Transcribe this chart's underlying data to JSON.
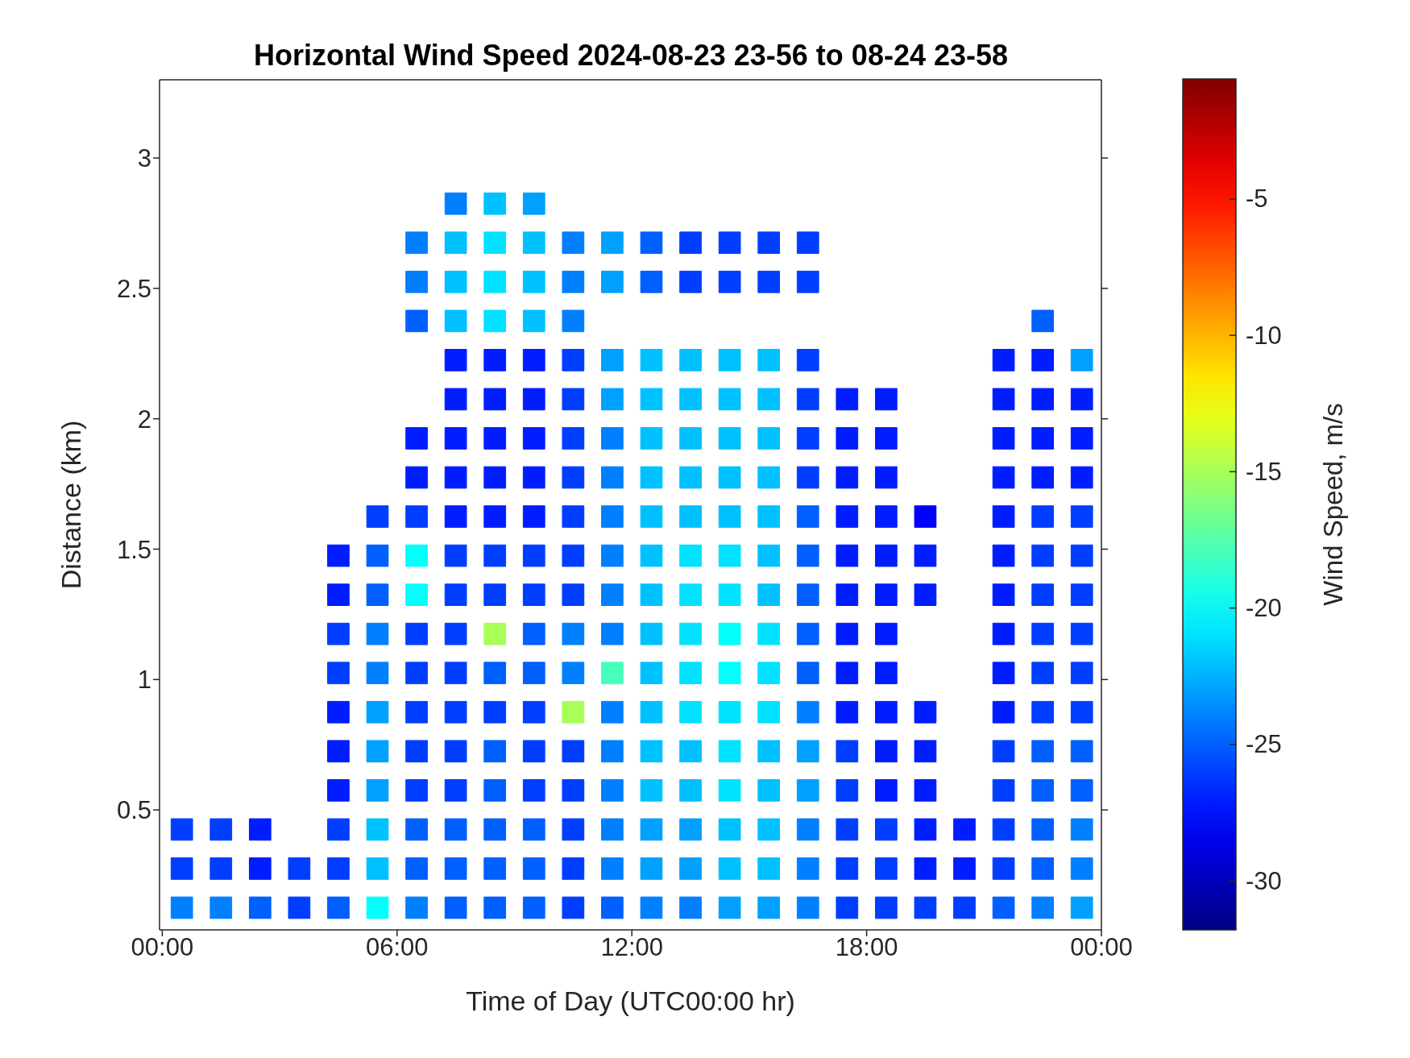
{
  "chart_data": {
    "type": "scatter",
    "title": "Horizontal Wind Speed 2024-08-23 23-56 to 08-24 23-58",
    "xlabel": "Time of Day (UTC00:00 hr)",
    "ylabel": "Distance (km)",
    "clabel": "Wind Speed, m/s",
    "marker": "square",
    "xlim": [
      -0.07,
      24
    ],
    "xticks": [
      {
        "value": 0,
        "label": "00:00"
      },
      {
        "value": 6,
        "label": "06:00"
      },
      {
        "value": 12,
        "label": "12:00"
      },
      {
        "value": 18,
        "label": "18:00"
      },
      {
        "value": 24,
        "label": "00:00"
      }
    ],
    "ylim": [
      0.04,
      3.3
    ],
    "yticks": [
      0.5,
      1,
      1.5,
      2,
      2.5,
      3
    ],
    "clim": [
      -31.8,
      -0.6
    ],
    "cticks": [
      -30,
      -25,
      -20,
      -15,
      -10,
      -5
    ],
    "series": [
      {
        "x": [
          0.5,
          0.5,
          0.5
        ],
        "values": [
          0.125,
          0.275,
          0.425
        ],
        "cvalues": [
          -24,
          -26,
          -26
        ],
        "colors": [
          "#0080ff",
          "#003eff",
          "#003eff"
        ]
      },
      {
        "x": [
          1.5,
          1.5,
          1.5
        ],
        "values": [
          0.125,
          0.275,
          0.425
        ],
        "cvalues": [
          -24,
          -26,
          -26
        ],
        "colors": [
          "#0080ff",
          "#003eff",
          "#003eff"
        ]
      },
      {
        "x": [
          2.5,
          2.5,
          2.5
        ],
        "values": [
          0.125,
          0.275,
          0.425
        ],
        "cvalues": [
          -25,
          -27,
          -27
        ],
        "colors": [
          "#005fff",
          "#001dff",
          "#001dff"
        ]
      },
      {
        "x": [
          3.5,
          3.5
        ],
        "values": [
          0.125,
          0.275
        ],
        "cvalues": [
          -26,
          -26
        ],
        "colors": [
          "#003eff",
          "#003eff"
        ]
      },
      {
        "x": [
          4.5,
          4.5,
          4.5,
          4.5,
          4.5,
          4.5,
          4.5,
          4.5,
          4.5,
          4.5
        ],
        "values": [
          0.125,
          0.275,
          0.425,
          0.575,
          0.725,
          0.875,
          1.025,
          1.175,
          1.325,
          1.475
        ],
        "cvalues": [
          -25,
          -26,
          -26,
          -27,
          -27,
          -27,
          -26,
          -26,
          -27,
          -27
        ],
        "colors": [
          "#005fff",
          "#003eff",
          "#003eff",
          "#001dff",
          "#001dff",
          "#001dff",
          "#003eff",
          "#003eff",
          "#001dff",
          "#001dff"
        ]
      },
      {
        "x": [
          5.5,
          5.5,
          5.5,
          5.5,
          5.5,
          5.5,
          5.5,
          5.5,
          5.5,
          5.5,
          5.5
        ],
        "values": [
          0.125,
          0.275,
          0.425,
          0.575,
          0.725,
          0.875,
          1.025,
          1.175,
          1.325,
          1.475,
          1.625
        ],
        "cvalues": [
          -20,
          -22,
          -22,
          -23,
          -23,
          -23,
          -24,
          -24,
          -25,
          -25,
          -26
        ],
        "colors": [
          "#03fffc",
          "#00c1ff",
          "#00c1ff",
          "#00a0ff",
          "#00a0ff",
          "#00a0ff",
          "#0080ff",
          "#0080ff",
          "#005fff",
          "#005fff",
          "#003eff"
        ]
      },
      {
        "x": [
          6.5,
          6.5,
          6.5,
          6.5,
          6.5,
          6.5,
          6.5,
          6.5,
          6.5,
          6.5,
          6.5,
          6.5,
          6.5,
          6.5,
          6.5,
          6.5
        ],
        "values": [
          0.125,
          0.275,
          0.425,
          0.575,
          0.725,
          0.875,
          1.025,
          1.175,
          1.325,
          1.475,
          1.625,
          1.775,
          1.925,
          2.375,
          2.525,
          2.675
        ],
        "cvalues": [
          -24,
          -25,
          -25,
          -26,
          -26,
          -26,
          -26,
          -26,
          -20,
          -20,
          -26,
          -27,
          -27,
          -25,
          -24,
          -24
        ],
        "colors": [
          "#0080ff",
          "#005fff",
          "#005fff",
          "#003eff",
          "#003eff",
          "#003eff",
          "#003eff",
          "#003eff",
          "#03fffc",
          "#03fffc",
          "#003eff",
          "#001dff",
          "#001dff",
          "#005fff",
          "#0080ff",
          "#0080ff"
        ]
      },
      {
        "x": [
          7.5,
          7.5,
          7.5,
          7.5,
          7.5,
          7.5,
          7.5,
          7.5,
          7.5,
          7.5,
          7.5,
          7.5,
          7.5,
          7.5,
          7.5,
          7.5,
          7.5,
          7.5,
          7.5
        ],
        "values": [
          0.125,
          0.275,
          0.425,
          0.575,
          0.725,
          0.875,
          1.025,
          1.175,
          1.325,
          1.475,
          1.625,
          1.775,
          1.925,
          2.075,
          2.225,
          2.375,
          2.525,
          2.675,
          2.825
        ],
        "cvalues": [
          -25,
          -25,
          -25,
          -26,
          -26,
          -26,
          -26,
          -26,
          -26,
          -26,
          -27,
          -27,
          -27,
          -27,
          -27,
          -22,
          -22,
          -22,
          -24
        ],
        "colors": [
          "#005fff",
          "#005fff",
          "#005fff",
          "#003eff",
          "#003eff",
          "#003eff",
          "#003eff",
          "#003eff",
          "#003eff",
          "#003eff",
          "#001dff",
          "#001dff",
          "#001dff",
          "#001dff",
          "#001dff",
          "#00c1ff",
          "#00c1ff",
          "#00c1ff",
          "#0080ff"
        ]
      },
      {
        "x": [
          8.5,
          8.5,
          8.5,
          8.5,
          8.5,
          8.5,
          8.5,
          8.5,
          8.5,
          8.5,
          8.5,
          8.5,
          8.5,
          8.5,
          8.5,
          8.5,
          8.5,
          8.5,
          8.5
        ],
        "values": [
          0.125,
          0.275,
          0.425,
          0.575,
          0.725,
          0.875,
          1.025,
          1.175,
          1.325,
          1.475,
          1.625,
          1.775,
          1.925,
          2.075,
          2.225,
          2.375,
          2.525,
          2.675,
          2.825
        ],
        "cvalues": [
          -25,
          -25,
          -25,
          -25,
          -25,
          -26,
          -25,
          -15,
          -26,
          -26,
          -27,
          -27,
          -27,
          -27,
          -27,
          -21,
          -21,
          -21,
          -22
        ],
        "colors": [
          "#005fff",
          "#005fff",
          "#005fff",
          "#005fff",
          "#005fff",
          "#003eff",
          "#005fff",
          "#a7ff58",
          "#003eff",
          "#003eff",
          "#001dff",
          "#001dff",
          "#001dff",
          "#001dff",
          "#001dff",
          "#00e2ff",
          "#00e2ff",
          "#00e2ff",
          "#00c1ff"
        ]
      },
      {
        "x": [
          9.5,
          9.5,
          9.5,
          9.5,
          9.5,
          9.5,
          9.5,
          9.5,
          9.5,
          9.5,
          9.5,
          9.5,
          9.5,
          9.5,
          9.5,
          9.5,
          9.5,
          9.5,
          9.5
        ],
        "values": [
          0.125,
          0.275,
          0.425,
          0.575,
          0.725,
          0.875,
          1.025,
          1.175,
          1.325,
          1.475,
          1.625,
          1.775,
          1.925,
          2.075,
          2.225,
          2.375,
          2.525,
          2.675,
          2.825
        ],
        "cvalues": [
          -25,
          -25,
          -25,
          -26,
          -26,
          -26,
          -25,
          -25,
          -26,
          -26,
          -27,
          -27,
          -27,
          -27,
          -27,
          -22,
          -22,
          -22,
          -23
        ],
        "colors": [
          "#005fff",
          "#005fff",
          "#005fff",
          "#003eff",
          "#003eff",
          "#003eff",
          "#005fff",
          "#005fff",
          "#003eff",
          "#003eff",
          "#001dff",
          "#001dff",
          "#001dff",
          "#001dff",
          "#001dff",
          "#00c1ff",
          "#00c1ff",
          "#00c1ff",
          "#00a0ff"
        ]
      },
      {
        "x": [
          10.5,
          10.5,
          10.5,
          10.5,
          10.5,
          10.5,
          10.5,
          10.5,
          10.5,
          10.5,
          10.5,
          10.5,
          10.5,
          10.5,
          10.5,
          10.5,
          10.5,
          10.5
        ],
        "values": [
          0.125,
          0.275,
          0.425,
          0.575,
          0.725,
          0.875,
          1.025,
          1.175,
          1.325,
          1.475,
          1.625,
          1.775,
          1.925,
          2.075,
          2.225,
          2.375,
          2.525,
          2.675
        ],
        "cvalues": [
          -26,
          -26,
          -26,
          -26,
          -26,
          -15,
          -24,
          -24,
          -26,
          -26,
          -26,
          -26,
          -26,
          -26,
          -26,
          -24,
          -24,
          -24
        ],
        "colors": [
          "#003eff",
          "#003eff",
          "#003eff",
          "#003eff",
          "#003eff",
          "#a7ff58",
          "#0080ff",
          "#0080ff",
          "#003eff",
          "#003eff",
          "#003eff",
          "#003eff",
          "#003eff",
          "#003eff",
          "#003eff",
          "#0080ff",
          "#0080ff",
          "#0080ff"
        ]
      },
      {
        "x": [
          11.5,
          11.5,
          11.5,
          11.5,
          11.5,
          11.5,
          11.5,
          11.5,
          11.5,
          11.5,
          11.5,
          11.5,
          11.5,
          11.5,
          11.5,
          11.5,
          11.5
        ],
        "values": [
          0.125,
          0.275,
          0.425,
          0.575,
          0.725,
          0.875,
          1.025,
          1.175,
          1.325,
          1.475,
          1.625,
          1.775,
          1.925,
          2.075,
          2.225,
          2.525,
          2.675
        ],
        "cvalues": [
          -25,
          -24,
          -24,
          -24,
          -24,
          -24,
          -18,
          -24,
          -24,
          -24,
          -24,
          -24,
          -24,
          -23,
          -23,
          -23,
          -23
        ],
        "colors": [
          "#005fff",
          "#0080ff",
          "#0080ff",
          "#0080ff",
          "#0080ff",
          "#0080ff",
          "#45ffba",
          "#0080ff",
          "#0080ff",
          "#0080ff",
          "#0080ff",
          "#0080ff",
          "#0080ff",
          "#00a0ff",
          "#00a0ff",
          "#00a0ff",
          "#00a0ff"
        ]
      },
      {
        "x": [
          12.5,
          12.5,
          12.5,
          12.5,
          12.5,
          12.5,
          12.5,
          12.5,
          12.5,
          12.5,
          12.5,
          12.5,
          12.5,
          12.5,
          12.5,
          12.5,
          12.5
        ],
        "values": [
          0.125,
          0.275,
          0.425,
          0.575,
          0.725,
          0.875,
          1.025,
          1.175,
          1.325,
          1.475,
          1.625,
          1.775,
          1.925,
          2.075,
          2.225,
          2.525,
          2.675
        ],
        "cvalues": [
          -24,
          -23,
          -23,
          -22,
          -22,
          -22,
          -22,
          -22,
          -22,
          -22,
          -22,
          -22,
          -22,
          -22,
          -22,
          -25,
          -25
        ],
        "colors": [
          "#0080ff",
          "#00a0ff",
          "#00a0ff",
          "#00c1ff",
          "#00c1ff",
          "#00c1ff",
          "#00c1ff",
          "#00c1ff",
          "#00c1ff",
          "#00c1ff",
          "#00c1ff",
          "#00c1ff",
          "#00c1ff",
          "#00c1ff",
          "#00c1ff",
          "#005fff",
          "#005fff"
        ]
      },
      {
        "x": [
          13.5,
          13.5,
          13.5,
          13.5,
          13.5,
          13.5,
          13.5,
          13.5,
          13.5,
          13.5,
          13.5,
          13.5,
          13.5,
          13.5,
          13.5,
          13.5,
          13.5
        ],
        "values": [
          0.125,
          0.275,
          0.425,
          0.575,
          0.725,
          0.875,
          1.025,
          1.175,
          1.325,
          1.475,
          1.625,
          1.775,
          1.925,
          2.075,
          2.225,
          2.525,
          2.675
        ],
        "cvalues": [
          -24,
          -23,
          -23,
          -22,
          -22,
          -21,
          -21,
          -21,
          -21,
          -21,
          -22,
          -22,
          -22,
          -22,
          -22,
          -26,
          -26
        ],
        "colors": [
          "#0080ff",
          "#00a0ff",
          "#00a0ff",
          "#00c1ff",
          "#00c1ff",
          "#00e2ff",
          "#00e2ff",
          "#00e2ff",
          "#00e2ff",
          "#00e2ff",
          "#00c1ff",
          "#00c1ff",
          "#00c1ff",
          "#00c1ff",
          "#00c1ff",
          "#003eff",
          "#003eff"
        ]
      },
      {
        "x": [
          14.5,
          14.5,
          14.5,
          14.5,
          14.5,
          14.5,
          14.5,
          14.5,
          14.5,
          14.5,
          14.5,
          14.5,
          14.5,
          14.5,
          14.5,
          14.5,
          14.5
        ],
        "values": [
          0.125,
          0.275,
          0.425,
          0.575,
          0.725,
          0.875,
          1.025,
          1.175,
          1.325,
          1.475,
          1.625,
          1.775,
          1.925,
          2.075,
          2.225,
          2.525,
          2.675
        ],
        "cvalues": [
          -23,
          -22,
          -22,
          -21,
          -21,
          -21,
          -20,
          -20,
          -21,
          -21,
          -22,
          -22,
          -22,
          -22,
          -22,
          -26,
          -26
        ],
        "colors": [
          "#00a0ff",
          "#00c1ff",
          "#00c1ff",
          "#00e2ff",
          "#00e2ff",
          "#00e2ff",
          "#03fffc",
          "#03fffc",
          "#00e2ff",
          "#00e2ff",
          "#00c1ff",
          "#00c1ff",
          "#00c1ff",
          "#00c1ff",
          "#00c1ff",
          "#003eff",
          "#003eff"
        ]
      },
      {
        "x": [
          15.5,
          15.5,
          15.5,
          15.5,
          15.5,
          15.5,
          15.5,
          15.5,
          15.5,
          15.5,
          15.5,
          15.5,
          15.5,
          15.5,
          15.5,
          15.5,
          15.5
        ],
        "values": [
          0.125,
          0.275,
          0.425,
          0.575,
          0.725,
          0.875,
          1.025,
          1.175,
          1.325,
          1.475,
          1.625,
          1.775,
          1.925,
          2.075,
          2.225,
          2.525,
          2.675
        ],
        "cvalues": [
          -23,
          -22,
          -22,
          -22,
          -22,
          -21,
          -21,
          -21,
          -22,
          -22,
          -22,
          -22,
          -22,
          -22,
          -22,
          -26,
          -26
        ],
        "colors": [
          "#00a0ff",
          "#00c1ff",
          "#00c1ff",
          "#00c1ff",
          "#00c1ff",
          "#00e2ff",
          "#00e2ff",
          "#00e2ff",
          "#00c1ff",
          "#00c1ff",
          "#00c1ff",
          "#00c1ff",
          "#00c1ff",
          "#00c1ff",
          "#00c1ff",
          "#003eff",
          "#003eff"
        ]
      },
      {
        "x": [
          16.5,
          16.5,
          16.5,
          16.5,
          16.5,
          16.5,
          16.5,
          16.5,
          16.5,
          16.5,
          16.5,
          16.5,
          16.5,
          16.5,
          16.5,
          16.5,
          16.5
        ],
        "values": [
          0.125,
          0.275,
          0.425,
          0.575,
          0.725,
          0.875,
          1.025,
          1.175,
          1.325,
          1.475,
          1.625,
          1.775,
          1.925,
          2.075,
          2.225,
          2.525,
          2.675
        ],
        "cvalues": [
          -24,
          -24,
          -24,
          -23,
          -23,
          -24,
          -25,
          -25,
          -25,
          -25,
          -25,
          -26,
          -26,
          -26,
          -26,
          -26,
          -26
        ],
        "colors": [
          "#0080ff",
          "#0080ff",
          "#0080ff",
          "#00a0ff",
          "#00a0ff",
          "#0080ff",
          "#005fff",
          "#005fff",
          "#005fff",
          "#005fff",
          "#005fff",
          "#003eff",
          "#003eff",
          "#003eff",
          "#003eff",
          "#003eff",
          "#003eff"
        ]
      },
      {
        "x": [
          17.5,
          17.5,
          17.5,
          17.5,
          17.5,
          17.5,
          17.5,
          17.5,
          17.5,
          17.5,
          17.5,
          17.5,
          17.5,
          17.5
        ],
        "values": [
          0.125,
          0.275,
          0.425,
          0.575,
          0.725,
          0.875,
          1.025,
          1.175,
          1.325,
          1.475,
          1.625,
          1.775,
          1.925,
          2.075
        ],
        "cvalues": [
          -26,
          -26,
          -26,
          -26,
          -26,
          -27,
          -27,
          -27,
          -27,
          -27,
          -27,
          -27,
          -27,
          -27
        ],
        "colors": [
          "#003eff",
          "#003eff",
          "#003eff",
          "#003eff",
          "#003eff",
          "#001dff",
          "#001dff",
          "#001dff",
          "#001dff",
          "#001dff",
          "#001dff",
          "#001dff",
          "#001dff",
          "#001dff"
        ]
      },
      {
        "x": [
          18.5,
          18.5,
          18.5,
          18.5,
          18.5,
          18.5,
          18.5,
          18.5,
          18.5,
          18.5,
          18.5,
          18.5,
          18.5,
          18.5
        ],
        "values": [
          0.125,
          0.275,
          0.425,
          0.575,
          0.725,
          0.875,
          1.025,
          1.175,
          1.325,
          1.475,
          1.625,
          1.775,
          1.925,
          2.075
        ],
        "cvalues": [
          -26,
          -26,
          -26,
          -27,
          -27,
          -27,
          -27,
          -27,
          -27,
          -27,
          -27,
          -27,
          -27,
          -27
        ],
        "colors": [
          "#003eff",
          "#003eff",
          "#003eff",
          "#001dff",
          "#001dff",
          "#001dff",
          "#001dff",
          "#001dff",
          "#001dff",
          "#001dff",
          "#001dff",
          "#001dff",
          "#001dff",
          "#001dff"
        ]
      },
      {
        "x": [
          19.5,
          19.5,
          19.5,
          19.5,
          19.5,
          19.5,
          19.5,
          19.5,
          19.5
        ],
        "values": [
          0.125,
          0.275,
          0.425,
          0.575,
          0.725,
          0.875,
          1.325,
          1.475,
          1.625
        ],
        "cvalues": [
          -26,
          -27,
          -27,
          -27,
          -27,
          -27,
          -27,
          -27,
          -28
        ],
        "colors": [
          "#003eff",
          "#001dff",
          "#001dff",
          "#001dff",
          "#001dff",
          "#001dff",
          "#001dff",
          "#001dff",
          "#0000fc"
        ]
      },
      {
        "x": [
          20.5,
          20.5,
          20.5
        ],
        "values": [
          0.125,
          0.275,
          0.425
        ],
        "cvalues": [
          -26,
          -27,
          -27
        ],
        "colors": [
          "#003eff",
          "#001dff",
          "#001dff"
        ]
      },
      {
        "x": [
          21.5,
          21.5,
          21.5,
          21.5,
          21.5,
          21.5,
          21.5,
          21.5,
          21.5,
          21.5,
          21.5,
          21.5,
          21.5,
          21.5,
          21.5
        ],
        "values": [
          0.125,
          0.275,
          0.425,
          0.575,
          0.725,
          0.875,
          1.025,
          1.175,
          1.325,
          1.475,
          1.625,
          1.775,
          1.925,
          2.075,
          2.225
        ],
        "cvalues": [
          -25,
          -26,
          -26,
          -26,
          -26,
          -27,
          -27,
          -27,
          -27,
          -27,
          -27,
          -27,
          -27,
          -27,
          -27
        ],
        "colors": [
          "#005fff",
          "#003eff",
          "#003eff",
          "#003eff",
          "#003eff",
          "#001dff",
          "#001dff",
          "#001dff",
          "#001dff",
          "#001dff",
          "#001dff",
          "#001dff",
          "#001dff",
          "#001dff",
          "#001dff"
        ]
      },
      {
        "x": [
          22.5,
          22.5,
          22.5,
          22.5,
          22.5,
          22.5,
          22.5,
          22.5,
          22.5,
          22.5,
          22.5,
          22.5,
          22.5,
          22.5,
          22.5,
          22.5
        ],
        "values": [
          0.125,
          0.275,
          0.425,
          0.575,
          0.725,
          0.875,
          1.025,
          1.175,
          1.325,
          1.475,
          1.625,
          1.775,
          1.925,
          2.075,
          2.225,
          2.375
        ],
        "cvalues": [
          -24,
          -25,
          -25,
          -25,
          -25,
          -26,
          -26,
          -26,
          -26,
          -26,
          -26,
          -27,
          -27,
          -27,
          -27,
          -25
        ],
        "colors": [
          "#0080ff",
          "#005fff",
          "#005fff",
          "#005fff",
          "#005fff",
          "#003eff",
          "#003eff",
          "#003eff",
          "#003eff",
          "#003eff",
          "#003eff",
          "#001dff",
          "#001dff",
          "#001dff",
          "#001dff",
          "#005fff"
        ]
      },
      {
        "x": [
          23.5,
          23.5,
          23.5,
          23.5,
          23.5,
          23.5,
          23.5,
          23.5,
          23.5,
          23.5,
          23.5,
          23.5,
          23.5,
          23.5,
          23.5
        ],
        "values": [
          0.125,
          0.275,
          0.425,
          0.575,
          0.725,
          0.875,
          1.025,
          1.175,
          1.325,
          1.475,
          1.625,
          1.775,
          1.925,
          2.075,
          2.225
        ],
        "cvalues": [
          -23,
          -24,
          -24,
          -25,
          -25,
          -26,
          -26,
          -26,
          -26,
          -26,
          -26,
          -27,
          -27,
          -27,
          -23
        ],
        "colors": [
          "#00a0ff",
          "#0080ff",
          "#0080ff",
          "#005fff",
          "#005fff",
          "#003eff",
          "#003eff",
          "#003eff",
          "#003eff",
          "#003eff",
          "#003eff",
          "#001dff",
          "#001dff",
          "#001dff",
          "#00a0ff"
        ]
      }
    ]
  }
}
